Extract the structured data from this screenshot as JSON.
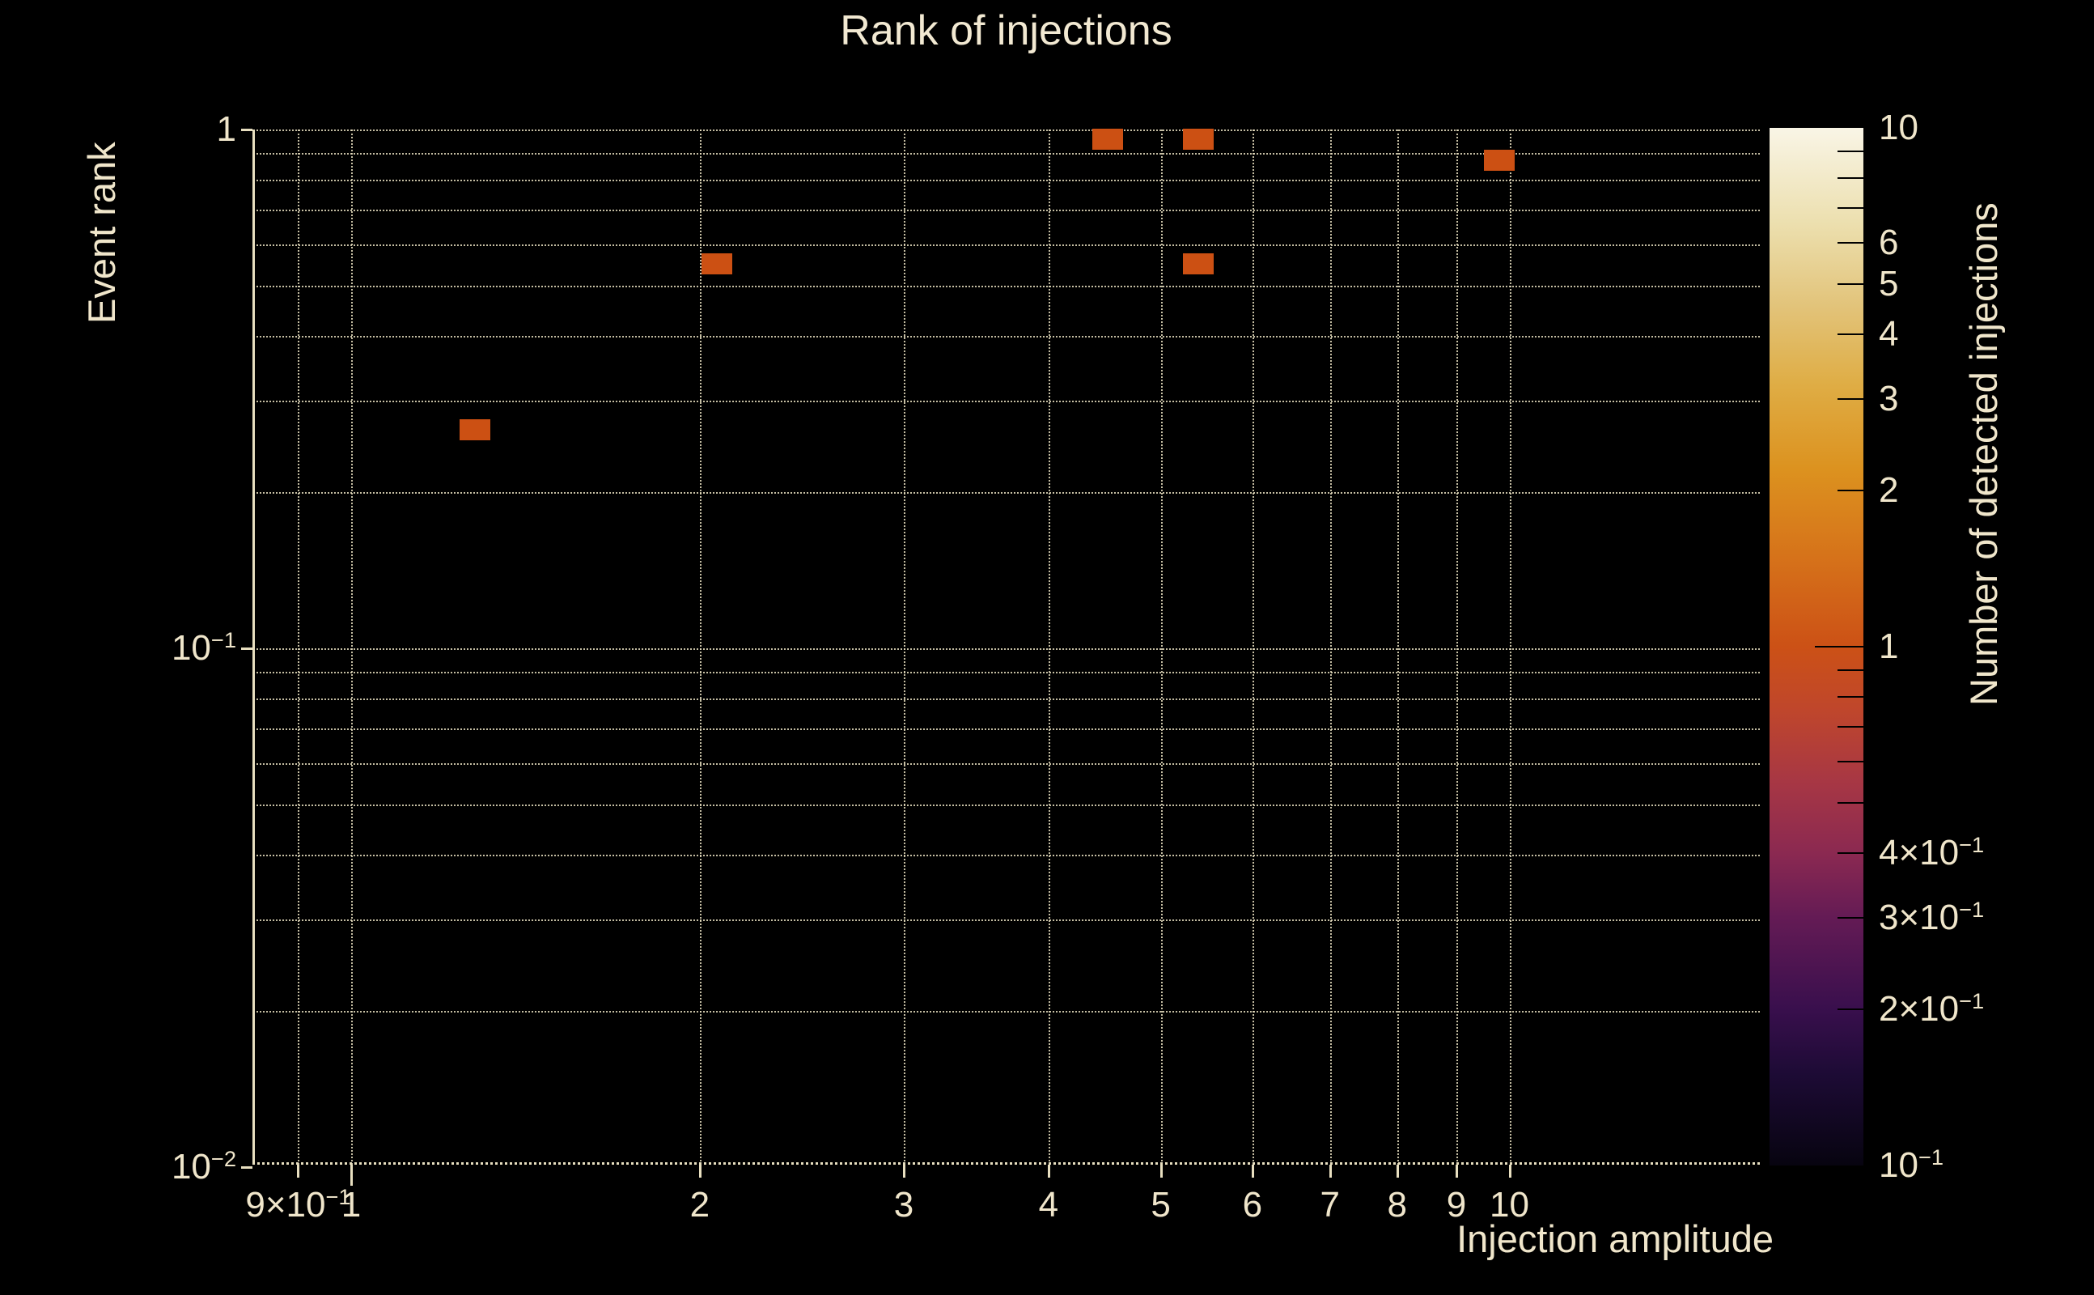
{
  "colors": {
    "background": "#000000",
    "text": "#f0e6cb",
    "grid": "#e8dfc0",
    "bin": "#cc5013"
  },
  "chart_data": {
    "type": "heatmap",
    "title": "Rank of injections",
    "xlabel": "Injection amplitude",
    "ylabel": "Event rank",
    "xscale": "log",
    "yscale": "log",
    "xlim": [
      0.82,
      16.5
    ],
    "ylim": [
      0.01,
      1.0
    ],
    "grid": "dotted",
    "x_ticks": [
      {
        "v": 0.9,
        "text": "9×10",
        "sup": "−1"
      },
      {
        "v": 1,
        "text": "1",
        "sup": ""
      },
      {
        "v": 2,
        "text": "2",
        "sup": ""
      },
      {
        "v": 3,
        "text": "3",
        "sup": ""
      },
      {
        "v": 4,
        "text": "4",
        "sup": ""
      },
      {
        "v": 5,
        "text": "5",
        "sup": ""
      },
      {
        "v": 6,
        "text": "6",
        "sup": ""
      },
      {
        "v": 7,
        "text": "7",
        "sup": ""
      },
      {
        "v": 8,
        "text": "8",
        "sup": ""
      },
      {
        "v": 9,
        "text": "9",
        "sup": ""
      },
      {
        "v": 10,
        "text": "10",
        "sup": ""
      }
    ],
    "y_ticks": [
      {
        "v": 1,
        "text": "1",
        "sup": ""
      },
      {
        "v": 0.1,
        "text": "10",
        "sup": "−1"
      },
      {
        "v": 0.01,
        "text": "10",
        "sup": "−2"
      }
    ],
    "x_grid_values": [
      0.9,
      1,
      2,
      3,
      4,
      5,
      6,
      7,
      8,
      9,
      10
    ],
    "y_grid_values": [
      1,
      0.9,
      0.8,
      0.7,
      0.6,
      0.5,
      0.4,
      0.3,
      0.2,
      0.1,
      0.09,
      0.08,
      0.07,
      0.06,
      0.05,
      0.04,
      0.03,
      0.02
    ],
    "bin_width_dex": 0.0266,
    "bin_height_dex": 0.0406,
    "points": [
      {
        "x": 4.5,
        "y": 0.957,
        "count": 1
      },
      {
        "x": 5.39,
        "y": 0.957,
        "count": 1
      },
      {
        "x": 9.8,
        "y": 0.873,
        "count": 1
      },
      {
        "x": 2.07,
        "y": 0.551,
        "count": 1
      },
      {
        "x": 5.39,
        "y": 0.551,
        "count": 1
      },
      {
        "x": 1.28,
        "y": 0.264,
        "count": 1
      }
    ],
    "colorbar": {
      "label": "Number of detected injections",
      "scale": "log",
      "lim": [
        0.1,
        10
      ],
      "ticks": [
        {
          "v": 10,
          "text": "10",
          "sup": ""
        },
        {
          "v": 6,
          "text": "6",
          "sup": ""
        },
        {
          "v": 5,
          "text": "5",
          "sup": ""
        },
        {
          "v": 4,
          "text": "4",
          "sup": ""
        },
        {
          "v": 3,
          "text": "3",
          "sup": ""
        },
        {
          "v": 2,
          "text": "2",
          "sup": ""
        },
        {
          "v": 1,
          "text": "1",
          "sup": ""
        },
        {
          "v": 0.4,
          "text": "4×10",
          "sup": "−1"
        },
        {
          "v": 0.3,
          "text": "3×10",
          "sup": "−1"
        },
        {
          "v": 0.2,
          "text": "2×10",
          "sup": "−1"
        },
        {
          "v": 0.1,
          "text": "10",
          "sup": "−1"
        }
      ],
      "minor_tick_values": [
        9,
        8,
        7,
        6,
        5,
        4,
        3,
        2,
        0.9,
        0.8,
        0.7,
        0.6,
        0.5,
        0.4,
        0.3,
        0.2
      ],
      "major_tick_values": [
        1
      ],
      "gradient_stops": [
        {
          "stop": 0.0,
          "color": "#070410"
        },
        {
          "stop": 0.088,
          "color": "#1d0b35"
        },
        {
          "stop": 0.151,
          "color": "#390f4d"
        },
        {
          "stop": 0.239,
          "color": "#641b55"
        },
        {
          "stop": 0.301,
          "color": "#8b2951"
        },
        {
          "stop": 0.37,
          "color": "#a73744"
        },
        {
          "stop": 0.438,
          "color": "#bf462c"
        },
        {
          "stop": 0.5,
          "color": "#cc5116"
        },
        {
          "stop": 0.588,
          "color": "#d6731a"
        },
        {
          "stop": 0.671,
          "color": "#dc921f"
        },
        {
          "stop": 0.753,
          "color": "#dfad45"
        },
        {
          "stop": 0.827,
          "color": "#e2c379"
        },
        {
          "stop": 0.907,
          "color": "#ecdfae"
        },
        {
          "stop": 1.0,
          "color": "#f9f5e6"
        }
      ]
    }
  }
}
